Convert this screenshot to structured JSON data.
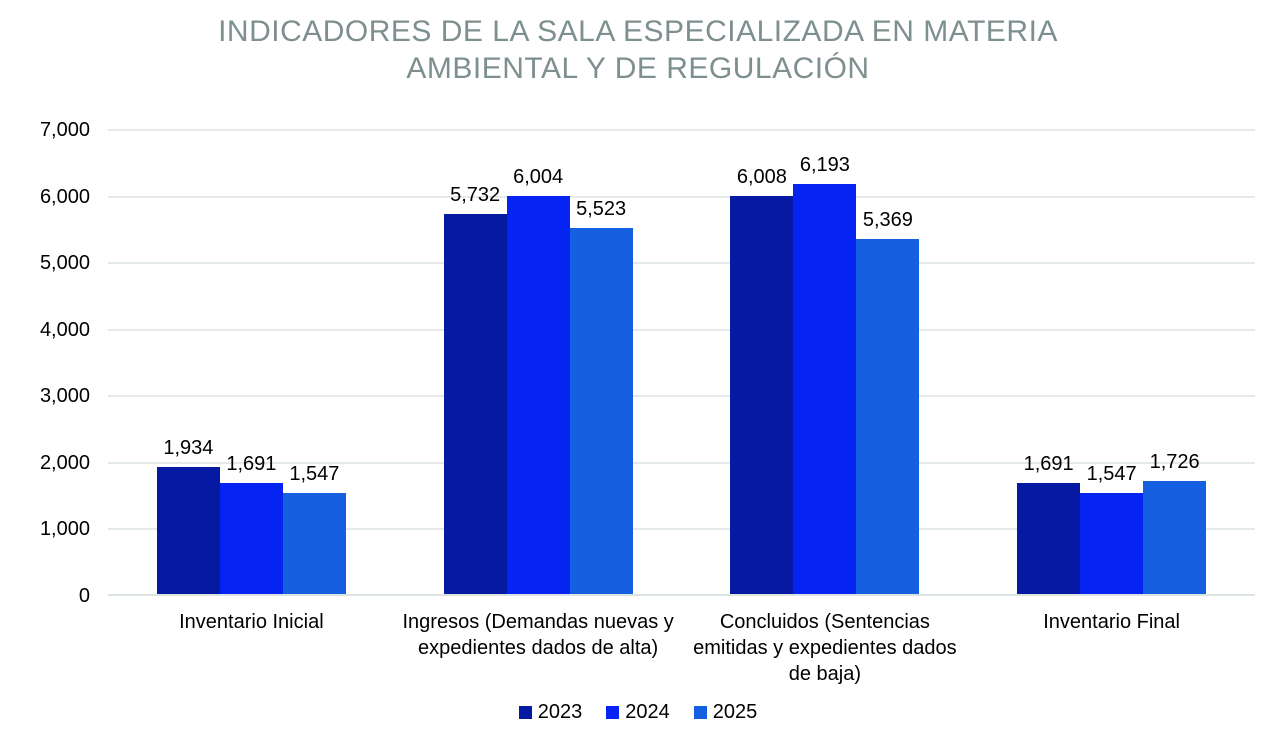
{
  "chart_data": {
    "type": "bar",
    "title": "INDICADORES DE LA SALA ESPECIALIZADA EN MATERIA AMBIENTAL Y DE REGULACIÓN",
    "categories": [
      "Inventario Inicial",
      "Ingresos (Demandas nuevas y expedientes dados de alta)",
      "Concluidos (Sentencias emitidas y expedientes dados de baja)",
      "Inventario Final"
    ],
    "series": [
      {
        "name": "2023",
        "color": "#0519A2",
        "values": [
          1934,
          5732,
          6008,
          1691
        ]
      },
      {
        "name": "2024",
        "color": "#0524F2",
        "values": [
          1691,
          6004,
          6193,
          1547
        ]
      },
      {
        "name": "2025",
        "color": "#1460E0",
        "values": [
          1547,
          5523,
          5369,
          1726
        ]
      }
    ],
    "ylim": [
      0,
      7000
    ],
    "yticks": [
      "0",
      "1,000",
      "2,000",
      "3,000",
      "4,000",
      "5,000",
      "6,000",
      "7,000"
    ],
    "grid": true,
    "legend_position": "bottom",
    "data_labels": true
  },
  "styles": {
    "title_color": "#7E8F90",
    "gridline_color": "#E4EAEA",
    "axis_line_color": "#DCE3E3",
    "background": "#FFFFFF",
    "text_color": "#000000"
  }
}
